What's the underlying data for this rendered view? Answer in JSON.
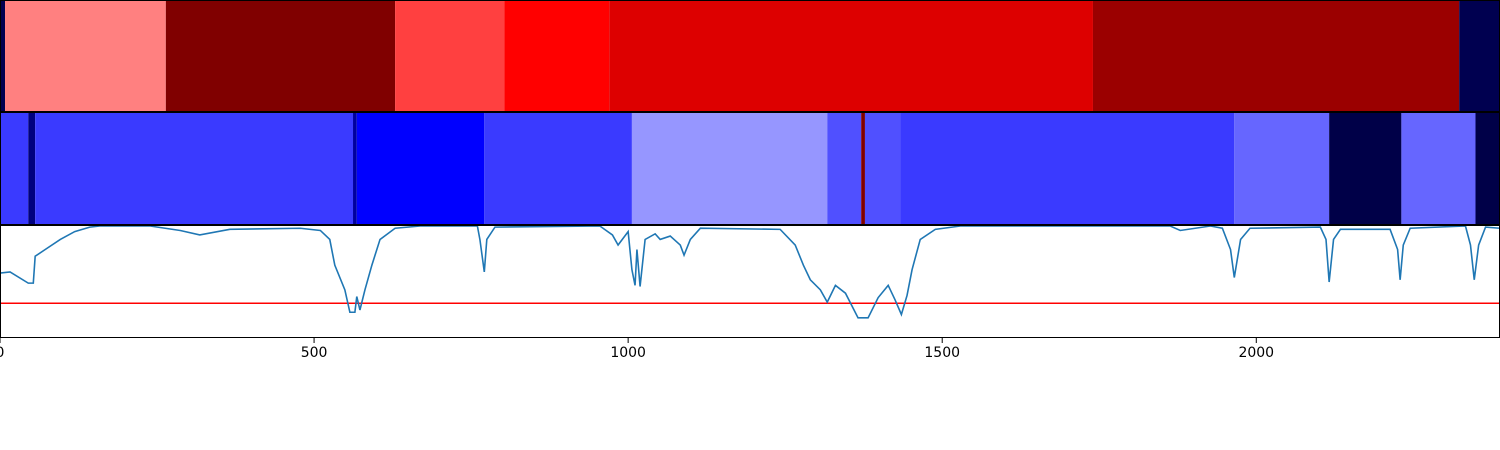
{
  "chart_data": [
    {
      "type": "segments",
      "xlim": [
        0,
        2388
      ],
      "edges": [
        0,
        8,
        264,
        629,
        803,
        970,
        1740,
        2323,
        2388
      ],
      "colors": [
        "#000050",
        "#ff8080",
        "#800000",
        "#ff4040",
        "#ff0000",
        "#dd0000",
        "#9b0000",
        "#000050"
      ]
    },
    {
      "type": "segments",
      "xlim": [
        0,
        2388
      ],
      "edges": [
        0,
        45,
        56,
        562,
        568,
        771,
        1006,
        1317,
        1371,
        1377,
        1433,
        1965,
        2116,
        2231,
        2349,
        2388
      ],
      "colors": [
        "#3a3aff",
        "#000080",
        "#3a3aff",
        "#0000a0",
        "#0000ff",
        "#3a3aff",
        "#9696ff",
        "#5050ff",
        "#800000",
        "#5050ff",
        "#3a3aff",
        "#6666ff",
        "#000048",
        "#6666ff",
        "#000048"
      ]
    },
    {
      "type": "line",
      "xlim": [
        0,
        2388
      ],
      "ylim": [
        0,
        1.0
      ],
      "xticks": [
        0,
        500,
        1000,
        1500,
        2000
      ],
      "threshold": 0.31,
      "threshold_color": "#ff0000",
      "color": "#1f77b4",
      "x": [
        0,
        16,
        45,
        53,
        56,
        72,
        96,
        119,
        143,
        159,
        239,
        287,
        318,
        366,
        478,
        510,
        525,
        533,
        549,
        557,
        565,
        568,
        573,
        581,
        592,
        605,
        629,
        669,
        760,
        764,
        771,
        775,
        788,
        955,
        975,
        984,
        1000,
        1006,
        1011,
        1014,
        1019,
        1027,
        1043,
        1051,
        1067,
        1083,
        1089,
        1099,
        1115,
        1242,
        1266,
        1279,
        1290,
        1306,
        1317,
        1330,
        1346,
        1366,
        1382,
        1398,
        1414,
        1425,
        1435,
        1444,
        1452,
        1465,
        1489,
        1529,
        1863,
        1879,
        1927,
        1946,
        1959,
        1965,
        1975,
        1990,
        2102,
        2111,
        2116,
        2123,
        2134,
        2213,
        2225,
        2229,
        2234,
        2245,
        2333,
        2341,
        2347,
        2354,
        2365,
        2388
      ],
      "values": [
        0.58,
        0.59,
        0.49,
        0.49,
        0.73,
        0.79,
        0.88,
        0.95,
        0.99,
        1.0,
        1.0,
        0.96,
        0.92,
        0.97,
        0.98,
        0.96,
        0.88,
        0.65,
        0.43,
        0.23,
        0.23,
        0.37,
        0.25,
        0.43,
        0.65,
        0.88,
        0.98,
        1.0,
        1.0,
        0.88,
        0.59,
        0.88,
        0.99,
        1.0,
        0.92,
        0.83,
        0.95,
        0.61,
        0.47,
        0.79,
        0.46,
        0.88,
        0.93,
        0.88,
        0.91,
        0.83,
        0.74,
        0.88,
        0.98,
        0.97,
        0.83,
        0.65,
        0.52,
        0.43,
        0.32,
        0.47,
        0.4,
        0.18,
        0.18,
        0.36,
        0.47,
        0.34,
        0.21,
        0.38,
        0.61,
        0.88,
        0.97,
        1.0,
        1.0,
        0.96,
        1.0,
        0.98,
        0.79,
        0.54,
        0.88,
        0.98,
        0.99,
        0.88,
        0.5,
        0.88,
        0.97,
        0.97,
        0.79,
        0.52,
        0.83,
        0.98,
        1.0,
        0.83,
        0.52,
        0.83,
        0.99,
        0.98
      ]
    }
  ]
}
